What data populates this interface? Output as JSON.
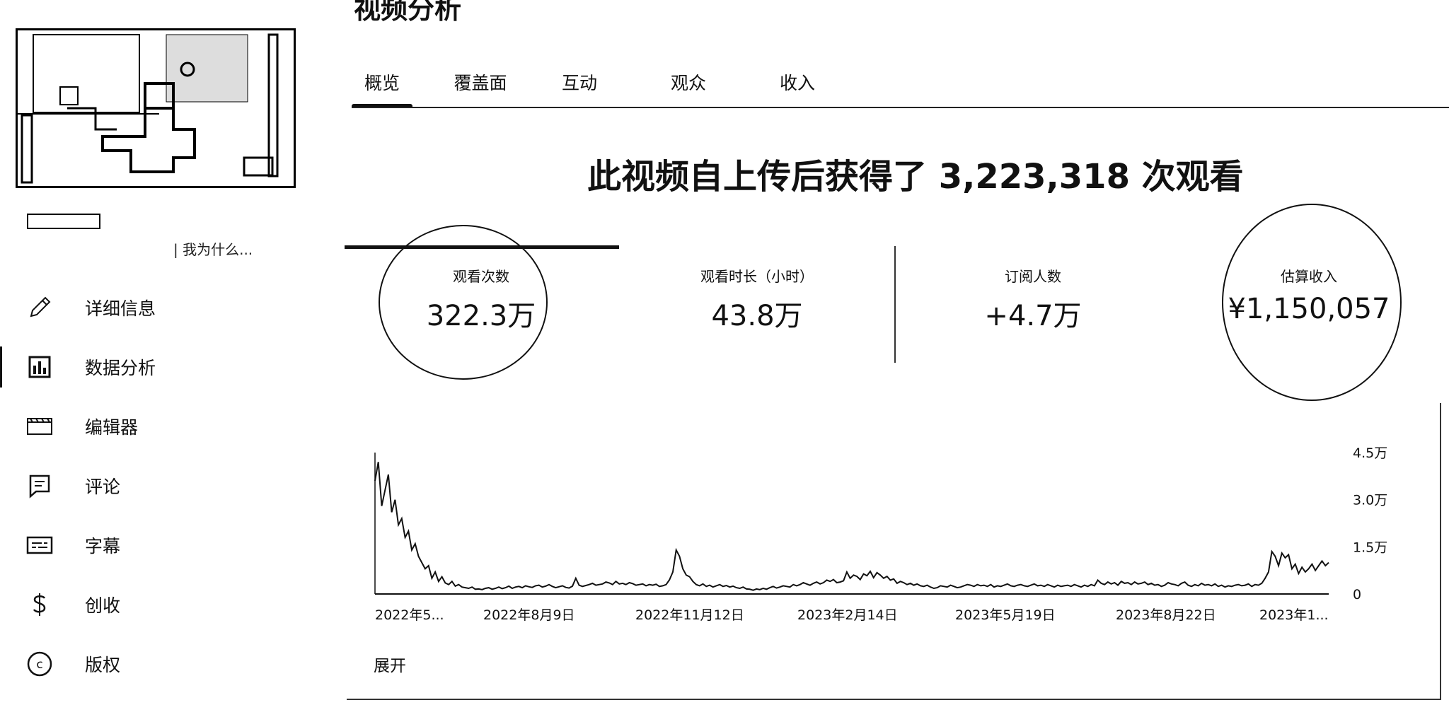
{
  "sidebar": {
    "title_snippet": "| 我为什么...",
    "items": [
      {
        "label": "详细信息",
        "icon": "pencil-icon"
      },
      {
        "label": "数据分析",
        "icon": "analytics-icon"
      },
      {
        "label": "编辑器",
        "icon": "clapperboard-icon"
      },
      {
        "label": "评论",
        "icon": "comment-icon"
      },
      {
        "label": "字幕",
        "icon": "subtitles-icon"
      },
      {
        "label": "创收",
        "icon": "dollar-icon"
      },
      {
        "label": "版权",
        "icon": "copyright-icon"
      }
    ],
    "active_index": 1
  },
  "header": {
    "title": "视频分析",
    "tabs": [
      "概览",
      "覆盖面",
      "互动",
      "观众",
      "收入"
    ],
    "active_tab": 0
  },
  "summary": {
    "headline": "此视频自上传后获得了 3,223,318 次观看"
  },
  "metrics": [
    {
      "label": "观看次数",
      "value": "322.3万"
    },
    {
      "label": "观看时长（小时）",
      "value": "43.8万"
    },
    {
      "label": "订阅人数",
      "value": "+4.7万"
    },
    {
      "label": "估算收入",
      "value": "¥1,150,057"
    }
  ],
  "chart_data": {
    "type": "line",
    "title": "",
    "xlabel": "",
    "ylabel": "",
    "x_tick_labels": [
      "2022年5...",
      "2022年8月9日",
      "2022年11月12日",
      "2023年2月14日",
      "2023年5月19日",
      "2023年8月22日",
      "2023年1..."
    ],
    "y_tick_labels": [
      "4.5万",
      "3.0万",
      "1.5万",
      "0"
    ],
    "ylim": [
      0,
      45000
    ],
    "grid": false,
    "series": [
      {
        "values": [
          36000,
          42000,
          28000,
          33000,
          38000,
          26000,
          30000,
          22000,
          24000,
          18000,
          20000,
          14000,
          16000,
          12000,
          10000,
          8000,
          9000,
          5000,
          7000,
          4000,
          5500,
          3500,
          3000,
          4000,
          2500,
          3000,
          2200,
          2000,
          1800,
          2200,
          1500,
          1600,
          1400,
          1800,
          2000,
          1500,
          1800,
          2200,
          1700,
          2000,
          2500,
          1800,
          2200,
          2400,
          2000,
          2600,
          2300,
          2100,
          2600,
          2800,
          2200,
          2500,
          3000,
          2400,
          2000,
          2300,
          2600,
          2100,
          1900,
          2500,
          5000,
          2800,
          2400,
          2700,
          3000,
          3400,
          2800,
          3000,
          3200,
          3800,
          3500,
          3000,
          4000,
          3200,
          3400,
          3000,
          3600,
          3300,
          2800,
          3000,
          3200,
          2600,
          3000,
          2800,
          3100,
          2400,
          2600,
          3000,
          4500,
          7000,
          14000,
          12000,
          8000,
          6000,
          5500,
          4000,
          3000,
          2600,
          3200,
          2400,
          2800,
          2200,
          2600,
          3000,
          2400,
          2700,
          2200,
          2500,
          2000,
          1800,
          2200,
          1600,
          1500,
          1200,
          1600,
          1400,
          1800,
          1500,
          2000,
          2400,
          1900,
          2200,
          2600,
          2400,
          2200,
          3000,
          2600,
          3000,
          3600,
          3200,
          2800,
          3400,
          3800,
          3200,
          3600,
          4400,
          4000,
          4600,
          3600,
          3800,
          4200,
          7000,
          5000,
          6000,
          5600,
          4600,
          6400,
          5800,
          7200,
          5200,
          6800,
          6000,
          5000,
          5600,
          4400,
          4800,
          3400,
          4000,
          3600,
          3000,
          3400,
          2800,
          3200,
          2600,
          2400,
          2800,
          2200,
          1800,
          2000,
          2600,
          2400,
          2200,
          2800,
          2400,
          2000,
          2200,
          2600,
          3000,
          2800,
          2400,
          3000,
          2600,
          2800,
          2400,
          3000,
          2200,
          2600,
          2400,
          2800,
          3200,
          2600,
          2400,
          2800,
          3000,
          2600,
          2400,
          2800,
          3200,
          2600,
          2800,
          2400,
          3000,
          2600,
          2200,
          2800,
          2400,
          2600,
          2800,
          2400,
          3000,
          2600,
          2200,
          2800,
          2400,
          3000,
          2600,
          4400,
          3400,
          3000,
          3800,
          3200,
          3600,
          2800,
          4000,
          3400,
          3600,
          3000,
          3800,
          3200,
          3400,
          3800,
          3000,
          3400,
          2800,
          3000,
          2400,
          2800,
          3600,
          3200,
          3000,
          2600,
          3400,
          3800,
          2800,
          2400,
          3000,
          2600,
          3400,
          2800,
          3000,
          2600,
          3200,
          2400,
          2800,
          2200,
          2600,
          2400,
          2800,
          3000,
          2600,
          2800,
          3200,
          2400,
          3000,
          2800,
          3400,
          5000,
          7000,
          13500,
          12000,
          9000,
          13000,
          11500,
          12500,
          8000,
          9500,
          6500,
          8500,
          7000,
          8000,
          9500,
          7500,
          9000,
          10500,
          9000,
          10000
        ]
      }
    ]
  }
}
